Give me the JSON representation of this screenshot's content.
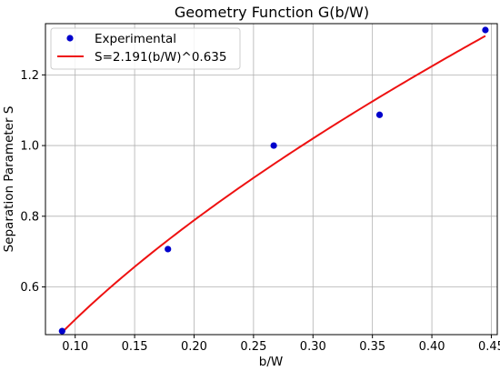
{
  "chart_data": {
    "type": "scatter",
    "title": "Geometry Function G(b/W)",
    "xlabel": "b/W",
    "ylabel": "Separation Parameter S",
    "xlim": [
      0.075,
      0.455
    ],
    "ylim": [
      0.465,
      1.345
    ],
    "x_ticks": [
      0.1,
      0.15,
      0.2,
      0.25,
      0.3,
      0.35,
      0.4,
      0.45
    ],
    "x_tick_labels": [
      "0.10",
      "0.15",
      "0.20",
      "0.25",
      "0.30",
      "0.35",
      "0.40",
      "0.45"
    ],
    "y_ticks": [
      0.6,
      0.8,
      1.0,
      1.2
    ],
    "y_tick_labels": [
      "0.6",
      "0.8",
      "1.0",
      "1.2"
    ],
    "grid": true,
    "legend_position": "top-left",
    "series": [
      {
        "name": "Experimental",
        "kind": "scatter",
        "color": "#0000cc",
        "x": [
          0.089,
          0.178,
          0.267,
          0.356,
          0.445
        ],
        "y": [
          0.475,
          0.707,
          1.0,
          1.087,
          1.327
        ]
      },
      {
        "name": "S=2.191(b/W)^0.635",
        "kind": "line",
        "color": "#ee1111",
        "coefficient": 2.191,
        "exponent": 0.635,
        "x_range": [
          0.089,
          0.445
        ]
      }
    ]
  }
}
